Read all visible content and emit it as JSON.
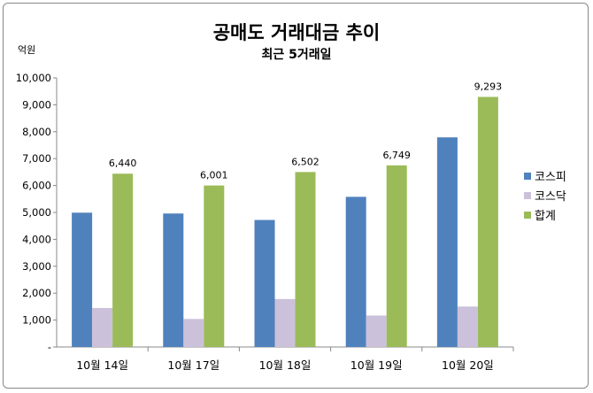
{
  "chart_data": {
    "type": "bar",
    "title": "공매도 거래대금 추이",
    "subtitle": "최근 5거래일",
    "ylabel": "억원",
    "xlabel": "",
    "ylim": [
      0,
      10000
    ],
    "yticks": [
      "-",
      "1,000",
      "2,000",
      "3,000",
      "4,000",
      "5,000",
      "6,000",
      "7,000",
      "8,000",
      "9,000",
      "10,000"
    ],
    "categories": [
      "10월 14일",
      "10월 17일",
      "10월 18일",
      "10월 19일",
      "10월 20일"
    ],
    "series": [
      {
        "name": "코스피",
        "color": "#4F81BD",
        "values": [
          4990,
          4960,
          4720,
          5580,
          7790
        ]
      },
      {
        "name": "코스닥",
        "color": "#CCC1DA",
        "values": [
          1450,
          1041,
          1782,
          1169,
          1503
        ]
      },
      {
        "name": "합계",
        "color": "#9BBB59",
        "values": [
          6440,
          6001,
          6502,
          6749,
          9293
        ],
        "labels": [
          "6,440",
          "6,001",
          "6,502",
          "6,749",
          "9,293"
        ]
      }
    ],
    "grid": false,
    "legend": "right"
  }
}
